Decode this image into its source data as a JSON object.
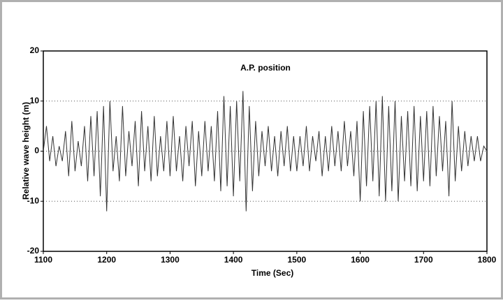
{
  "chart_data": {
    "type": "line",
    "title": "A.P. position",
    "x_label": "Time (Sec)",
    "y_label": "Relative wave height (m)",
    "x": [
      1100,
      1105,
      1110,
      1115,
      1120,
      1125,
      1130,
      1135,
      1140,
      1145,
      1150,
      1155,
      1160,
      1165,
      1170,
      1175,
      1180,
      1185,
      1190,
      1195,
      1200,
      1205,
      1210,
      1215,
      1220,
      1225,
      1230,
      1235,
      1240,
      1245,
      1250,
      1255,
      1260,
      1265,
      1270,
      1275,
      1280,
      1285,
      1290,
      1295,
      1300,
      1305,
      1310,
      1315,
      1320,
      1325,
      1330,
      1335,
      1340,
      1345,
      1350,
      1355,
      1360,
      1365,
      1370,
      1375,
      1380,
      1385,
      1390,
      1395,
      1400,
      1405,
      1410,
      1415,
      1420,
      1425,
      1430,
      1435,
      1440,
      1445,
      1450,
      1455,
      1460,
      1465,
      1470,
      1475,
      1480,
      1485,
      1490,
      1495,
      1500,
      1505,
      1510,
      1515,
      1520,
      1525,
      1530,
      1535,
      1540,
      1545,
      1550,
      1555,
      1560,
      1565,
      1570,
      1575,
      1580,
      1585,
      1590,
      1595,
      1600,
      1605,
      1610,
      1615,
      1620,
      1625,
      1630,
      1635,
      1640,
      1645,
      1650,
      1655,
      1660,
      1665,
      1670,
      1675,
      1680,
      1685,
      1690,
      1695,
      1700,
      1705,
      1710,
      1715,
      1720,
      1725,
      1730,
      1735,
      1740,
      1745,
      1750,
      1755,
      1760,
      1765,
      1770,
      1775,
      1780,
      1785,
      1790,
      1795,
      1800
    ],
    "series": [
      {
        "name": "A.P. position",
        "color": "#333333",
        "values": [
          0,
          5,
          -2,
          3,
          -3,
          1,
          -2,
          4,
          -5,
          6,
          -4,
          2,
          -3,
          5,
          -6,
          7,
          -5,
          8,
          -9,
          9,
          -12,
          10,
          -4,
          3,
          -6,
          9,
          -5,
          4,
          -3,
          6,
          -7,
          8,
          -4,
          5,
          -6,
          7,
          -5,
          3,
          -4,
          6,
          -5,
          7,
          -4,
          3,
          -6,
          5,
          -3,
          6,
          -7,
          4,
          -5,
          6,
          -4,
          5,
          -6,
          8,
          -8,
          11,
          -7,
          9,
          -9,
          10,
          -6,
          12,
          -12,
          9,
          -8,
          6,
          -5,
          4,
          -3,
          5,
          -4,
          3,
          -5,
          4,
          -3,
          5,
          -4,
          3,
          -4,
          3,
          -3,
          5,
          -4,
          3,
          -2,
          4,
          -5,
          3,
          -4,
          5,
          -3,
          4,
          -4,
          6,
          -3,
          4,
          -5,
          6,
          -10,
          8,
          -7,
          9,
          -6,
          10,
          -9,
          11,
          -10,
          9,
          -8,
          10,
          -10,
          7,
          -6,
          8,
          -7,
          9,
          -8,
          7,
          -6,
          8,
          -7,
          9,
          -5,
          7,
          -4,
          6,
          -9,
          10,
          -6,
          5,
          -4,
          4,
          -3,
          3,
          -2,
          3,
          -2,
          1,
          0
        ]
      }
    ],
    "xlim": [
      1100,
      1800
    ],
    "xticks": [
      1100,
      1200,
      1300,
      1400,
      1500,
      1600,
      1700,
      1800
    ],
    "ylim": [
      -20,
      20
    ],
    "yticks": [
      -20,
      -10,
      0,
      10,
      20
    ],
    "grid": true
  }
}
